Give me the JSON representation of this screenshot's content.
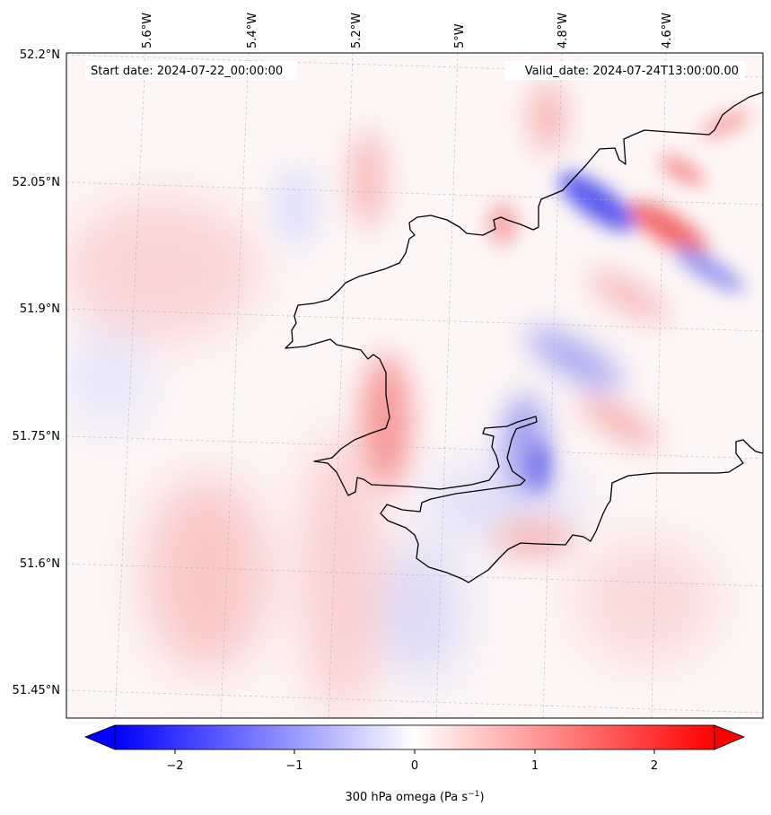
{
  "header": {
    "start_date": "Start date: 2024-07-22_00:00:00",
    "valid_date": "Valid_date: 2024-07-24T13:00:00.00"
  },
  "axes": {
    "lon_labels": [
      "5.6°W",
      "5.4°W",
      "5.2°W",
      "5°W",
      "4.8°W",
      "4.6°W"
    ],
    "lat_labels": [
      "52.2°N",
      "52.05°N",
      "51.9°N",
      "51.75°N",
      "51.6°N",
      "51.45°N"
    ]
  },
  "colorbar": {
    "ticks": [
      "−2",
      "−1",
      "0",
      "1",
      "2"
    ],
    "label_main": "300 hPa omega (Pa s",
    "label_sup": "−1",
    "label_end": ")",
    "range": [
      -2.75,
      2.75
    ],
    "colormap": "bwr",
    "min_color": "#0000ff",
    "mid_color": "#ffffff",
    "max_color": "#ff0000"
  },
  "map": {
    "region": "South Wales coast (Pembrokeshire)",
    "coastline_color": "#000000",
    "gridline_color": "#b0b0b0"
  }
}
